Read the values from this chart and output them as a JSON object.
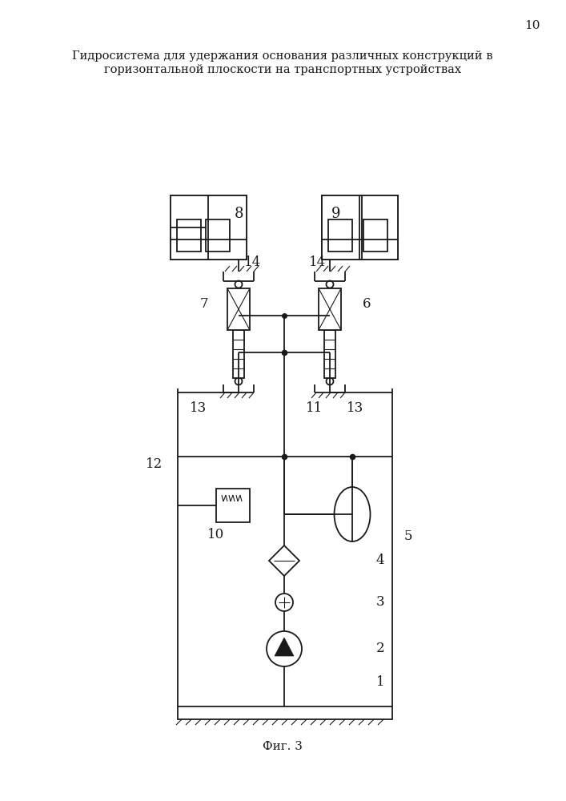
{
  "title_line1": "Гидросистема для удержания основания различных конструкций в",
  "title_line2": "горизонтальной плоскости на транспортных устройствах",
  "page_number": "10",
  "fig_label": "Фиг. 3",
  "bg_color": "#ffffff",
  "line_color": "#1a1a1a",
  "lw": 1.3,
  "lw_thin": 0.8
}
